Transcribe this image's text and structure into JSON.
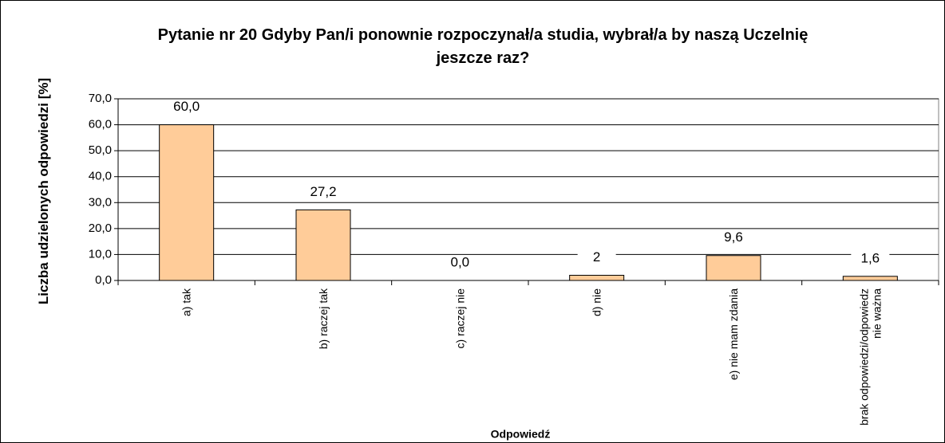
{
  "chart_data": {
    "type": "bar",
    "title": "Pytanie nr 20 Gdyby Pan/i ponownie rozpoczynał/a studia, wybrał/a by naszą Uczelnię jeszcze raz?",
    "x_label": "Odpowiedź",
    "y_label": "Liczba udzielonych odpowiedzi [%]",
    "categories": [
      "a) tak",
      "b) raczej tak",
      "c) raczej nie",
      "d) nie",
      "e) nie mam zdania",
      "brak odpowiedzi/odpowiedz nie ważna"
    ],
    "values": [
      60,
      27.2,
      0,
      2,
      9.6,
      1.6
    ],
    "value_labels": [
      "60,0",
      "27,2",
      "0,0",
      "2",
      "9,6",
      "1,6"
    ],
    "color": "#ffcc99",
    "ylim": [
      0,
      70
    ],
    "yticks": [
      {
        "value": 0,
        "label": "0,0"
      },
      {
        "value": 10,
        "label": "10,0"
      },
      {
        "value": 20,
        "label": "20,0"
      },
      {
        "value": 30,
        "label": "30,0"
      },
      {
        "value": 40,
        "label": "40,0"
      },
      {
        "value": 50,
        "label": "50,0"
      },
      {
        "value": 60,
        "label": "60,0"
      },
      {
        "value": 70,
        "label": "70,0"
      }
    ],
    "grid": true
  }
}
